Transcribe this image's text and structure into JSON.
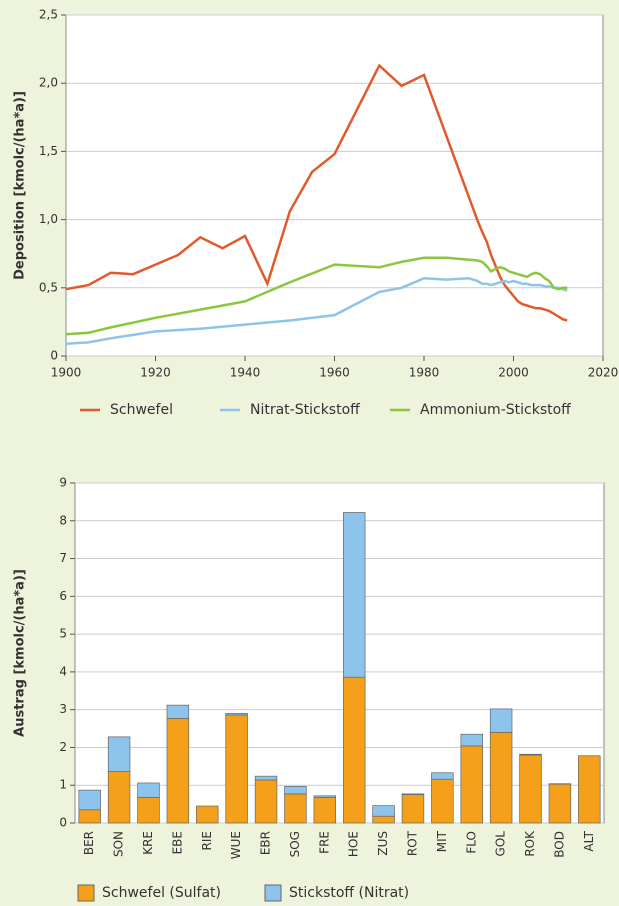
{
  "chart_data": [
    {
      "type": "line",
      "ylabel": "Deposition [kmolc/(ha*a)]",
      "xlim": [
        1900,
        2020
      ],
      "xticks": [
        1900,
        1920,
        1940,
        1960,
        1980,
        2000,
        2020
      ],
      "ylim": [
        0,
        2.5
      ],
      "yticks": [
        0,
        {
          "value": 0.5,
          "label": "0,5"
        },
        {
          "value": 1,
          "label": "1,0"
        },
        {
          "value": 1.5,
          "label": "1,5"
        },
        {
          "value": 2,
          "label": "2,0"
        },
        {
          "value": 2.5,
          "label": "2,5"
        }
      ],
      "grid": true,
      "series": [
        {
          "name": "Schwefel",
          "color": "#e05a2b",
          "x": [
            1900,
            1905,
            1910,
            1915,
            1920,
            1925,
            1930,
            1935,
            1940,
            1945,
            1950,
            1955,
            1960,
            1970,
            1975,
            1980,
            1992,
            1993,
            1994,
            1995,
            1996,
            1997,
            1998,
            1999,
            2000,
            2001,
            2002,
            2003,
            2004,
            2005,
            2006,
            2007,
            2008,
            2009,
            2010,
            2011,
            2012
          ],
          "values": [
            0.49,
            0.52,
            0.61,
            0.6,
            0.67,
            0.74,
            0.87,
            0.79,
            0.88,
            0.53,
            1.06,
            1.35,
            1.48,
            2.13,
            1.98,
            2.06,
            0.99,
            0.91,
            0.84,
            0.74,
            0.66,
            0.58,
            0.52,
            0.48,
            0.44,
            0.4,
            0.38,
            0.37,
            0.36,
            0.35,
            0.35,
            0.34,
            0.33,
            0.31,
            0.29,
            0.27,
            0.26
          ]
        },
        {
          "name": "Nitrat-Stickstoff",
          "color": "#8cc4ec",
          "x": [
            1900,
            1905,
            1910,
            1920,
            1930,
            1940,
            1950,
            1960,
            1970,
            1975,
            1980,
            1985,
            1990,
            1992,
            1993,
            1994,
            1995,
            1996,
            1997,
            1998,
            1999,
            2000,
            2001,
            2002,
            2003,
            2004,
            2005,
            2006,
            2007,
            2008,
            2009,
            2010,
            2011,
            2012
          ],
          "values": [
            0.09,
            0.1,
            0.13,
            0.18,
            0.2,
            0.23,
            0.26,
            0.3,
            0.47,
            0.5,
            0.57,
            0.56,
            0.57,
            0.55,
            0.53,
            0.53,
            0.52,
            0.53,
            0.54,
            0.55,
            0.54,
            0.55,
            0.54,
            0.53,
            0.53,
            0.52,
            0.52,
            0.52,
            0.51,
            0.51,
            0.5,
            0.5,
            0.49,
            0.48
          ]
        },
        {
          "name": "Ammonium-Stickstoff",
          "color": "#8cc63f",
          "x": [
            1900,
            1905,
            1910,
            1920,
            1930,
            1940,
            1950,
            1960,
            1970,
            1975,
            1980,
            1985,
            1992,
            1993,
            1994,
            1995,
            1996,
            1997,
            1998,
            1999,
            2000,
            2001,
            2002,
            2003,
            2004,
            2005,
            2006,
            2007,
            2008,
            2009,
            2010,
            2011,
            2012
          ],
          "values": [
            0.16,
            0.17,
            0.21,
            0.28,
            0.34,
            0.4,
            0.54,
            0.67,
            0.65,
            0.69,
            0.72,
            0.72,
            0.7,
            0.69,
            0.66,
            0.62,
            0.64,
            0.65,
            0.64,
            0.62,
            0.61,
            0.6,
            0.59,
            0.58,
            0.6,
            0.61,
            0.6,
            0.57,
            0.55,
            0.5,
            0.49,
            0.5,
            0.5
          ]
        }
      ]
    },
    {
      "type": "bar",
      "stacked": true,
      "ylabel": "Austrag [kmolc/(ha*a)]",
      "categories": [
        "BER",
        "SON",
        "KRE",
        "EBE",
        "RIE",
        "WUE",
        "EBR",
        "SOG",
        "FRE",
        "HOE",
        "ZUS",
        "ROT",
        "MIT",
        "FLO",
        "GOL",
        "ROK",
        "BOD",
        "ALT"
      ],
      "ylim": [
        0,
        9
      ],
      "yticks": [
        0,
        1,
        2,
        3,
        4,
        5,
        6,
        7,
        8,
        9
      ],
      "grid": true,
      "series": [
        {
          "name": "Schwefel (Sulfat)",
          "color": "#f5a01a",
          "values": [
            0.35,
            1.36,
            0.68,
            2.77,
            0.45,
            2.86,
            1.14,
            0.77,
            0.68,
            3.86,
            0.18,
            0.75,
            1.16,
            2.04,
            2.4,
            1.8,
            1.03,
            1.78
          ]
        },
        {
          "name": "Stickstoff (Nitrat)",
          "color": "#8cc4ec",
          "values": [
            0.52,
            0.92,
            0.38,
            0.35,
            0,
            0.04,
            0.1,
            0.2,
            0.04,
            4.36,
            0.28,
            0.02,
            0.17,
            0.31,
            0.62,
            0.02,
            0.01,
            0
          ]
        }
      ]
    }
  ]
}
